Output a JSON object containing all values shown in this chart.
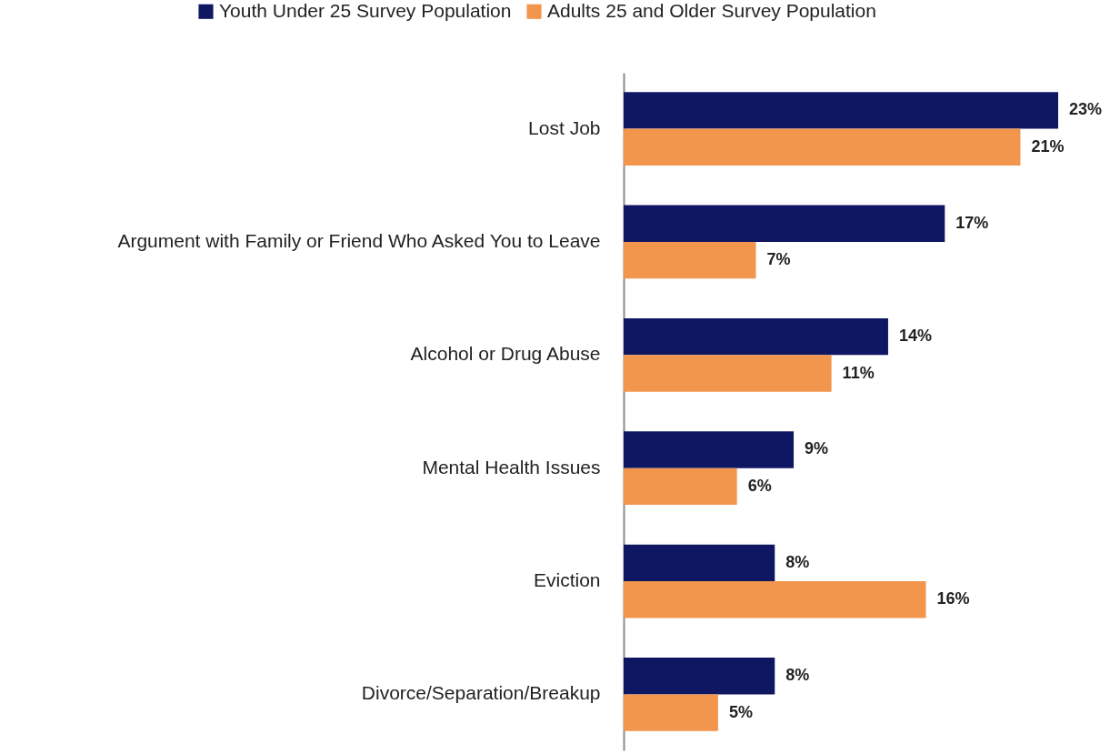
{
  "chart_data": {
    "type": "bar",
    "orientation": "horizontal",
    "legend": "top",
    "categories": [
      "Lost Job",
      "Argument with Family or Friend Who Asked You to Leave",
      "Alcohol or Drug Abuse",
      "Mental Health Issues",
      "Eviction",
      "Divorce/Separation/Breakup"
    ],
    "series": [
      {
        "name": "Youth Under 25 Survey Population",
        "color": "#0f1762",
        "values": [
          23,
          17,
          14,
          9,
          8,
          8
        ],
        "value_labels": [
          "23%",
          "17%",
          "14%",
          "9%",
          "8%",
          "8%"
        ]
      },
      {
        "name": "Adults 25 and Older Survey Population",
        "color": "#f2954d",
        "values": [
          21,
          7,
          11,
          6,
          16,
          5
        ],
        "value_labels": [
          "21%",
          "7%",
          "11%",
          "6%",
          "16%",
          "5%"
        ]
      }
    ]
  }
}
